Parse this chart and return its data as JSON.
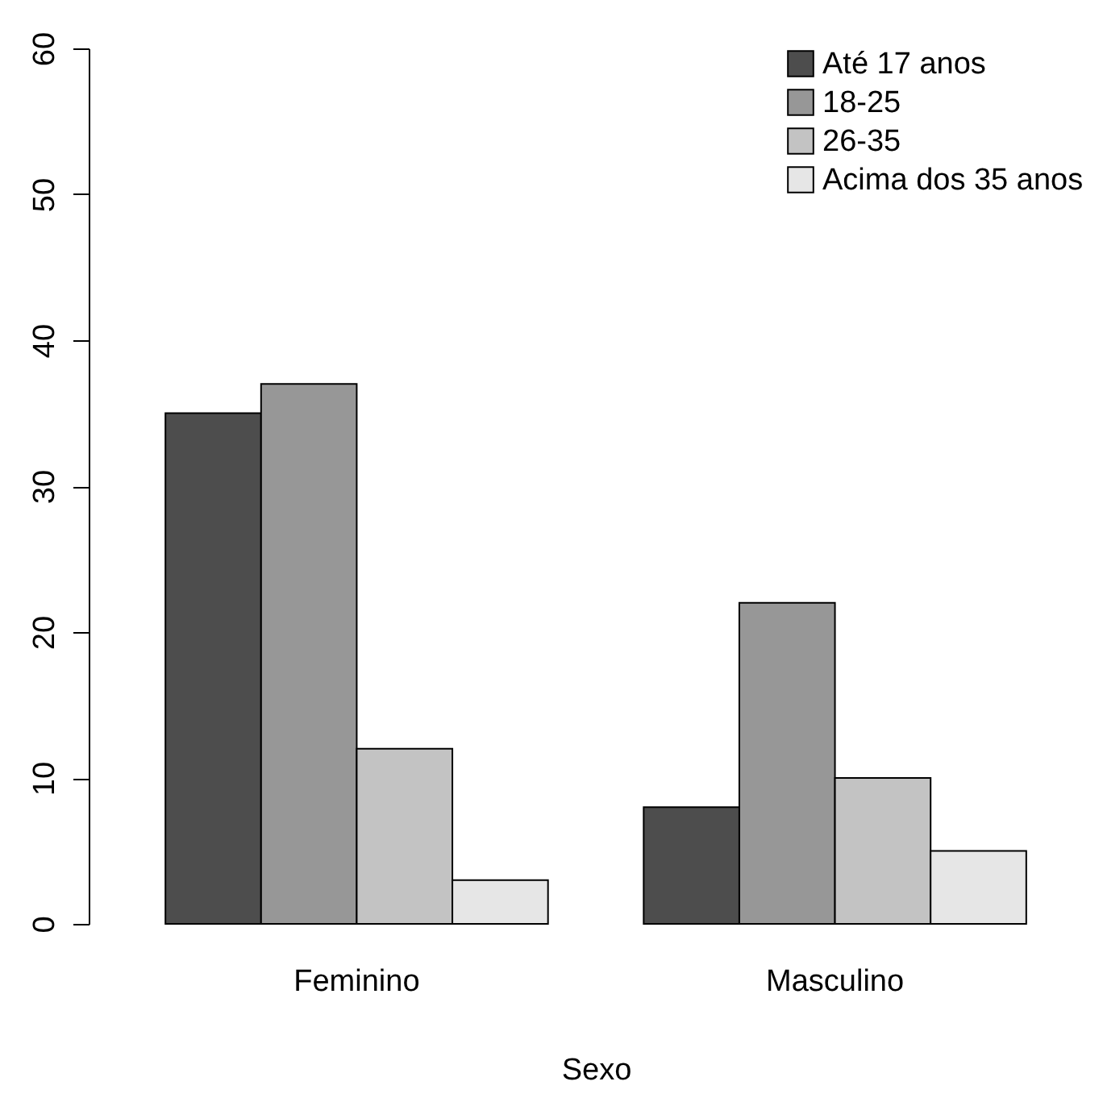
{
  "chart_data": {
    "type": "bar",
    "xlabel": "Sexo",
    "categories": [
      "Feminino",
      "Masculino"
    ],
    "series": [
      {
        "name": "Até 17 anos",
        "color": "#4d4d4d",
        "values": [
          35,
          8
        ]
      },
      {
        "name": "18-25",
        "color": "#979797",
        "values": [
          37,
          22
        ]
      },
      {
        "name": "26-35",
        "color": "#c3c3c3",
        "values": [
          12,
          10
        ]
      },
      {
        "name": "Acima dos 35 anos",
        "color": "#e6e6e6",
        "values": [
          3,
          5
        ]
      }
    ],
    "ylim": [
      0,
      60
    ],
    "yticks": [
      0,
      10,
      20,
      30,
      40,
      50,
      60
    ],
    "legend": "top right",
    "grid": false
  }
}
